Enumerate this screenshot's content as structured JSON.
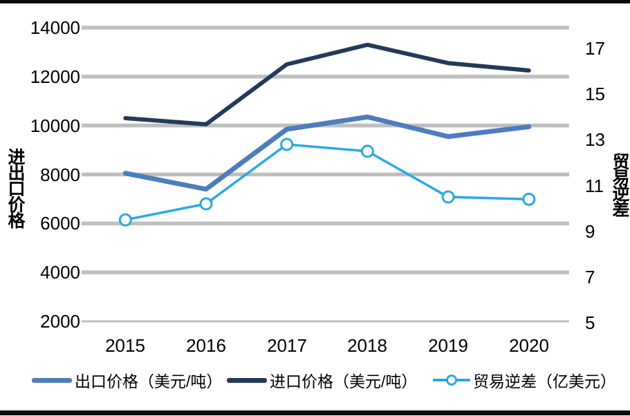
{
  "chart_data": {
    "type": "line",
    "categories": [
      "2015",
      "2016",
      "2017",
      "2018",
      "2019",
      "2020"
    ],
    "series": [
      {
        "name": "出口价格（美元/吨）",
        "axis": "left",
        "color": "#4E7DBE",
        "marker": "none",
        "values": [
          8050,
          7400,
          9850,
          10350,
          9550,
          9950
        ]
      },
      {
        "name": "进口价格（美元/吨）",
        "axis": "left",
        "color": "#24395B",
        "marker": "none",
        "values": [
          10300,
          10050,
          12500,
          13300,
          12550,
          12250
        ]
      },
      {
        "name": "贸易逆差（亿美元）",
        "axis": "right",
        "color": "#29A9E1",
        "marker": "circle",
        "values": [
          9.5,
          10.2,
          12.8,
          12.5,
          10.5,
          10.4
        ]
      }
    ],
    "left_axis": {
      "title": "进出口价格",
      "min": 2000,
      "max": 14000,
      "step": 2000,
      "ticks": [
        "14000",
        "12000",
        "10000",
        "8000",
        "6000",
        "4000",
        "2000"
      ]
    },
    "right_axis": {
      "title": "贸易逆差",
      "min": 5,
      "max": 17,
      "step": 2,
      "ticks": [
        "17",
        "15",
        "13",
        "11",
        "9",
        "7",
        "5"
      ]
    },
    "xlabel": "",
    "grid": true,
    "gridline_color": "#BFBFBF",
    "legend_position": "bottom"
  }
}
